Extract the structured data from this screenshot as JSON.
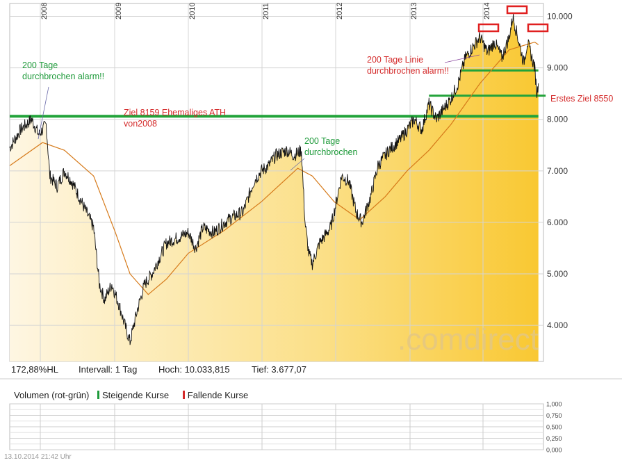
{
  "chart_data": {
    "type": "line",
    "x_year_labels": [
      "2008",
      "2009",
      "2010",
      "2011",
      "2012",
      "2013",
      "2014"
    ],
    "y_ticks": [
      4000,
      5000,
      6000,
      7000,
      8000,
      9000,
      10000
    ],
    "y_tick_labels": [
      "4.000",
      "5.000",
      "6.000",
      "7.000",
      "8.000",
      "9.000",
      "10.000"
    ],
    "ylim": [
      3300,
      10250
    ],
    "series": [
      {
        "role": "price",
        "points": [
          [
            2007.55,
            7450
          ],
          [
            2007.7,
            7800
          ],
          [
            2007.85,
            8000
          ],
          [
            2007.95,
            7700
          ],
          [
            2008.05,
            7900
          ],
          [
            2008.1,
            6900
          ],
          [
            2008.2,
            6700
          ],
          [
            2008.3,
            7000
          ],
          [
            2008.4,
            6800
          ],
          [
            2008.5,
            6500
          ],
          [
            2008.6,
            6200
          ],
          [
            2008.7,
            5900
          ],
          [
            2008.78,
            4800
          ],
          [
            2008.85,
            4500
          ],
          [
            2008.95,
            4800
          ],
          [
            2009.05,
            4400
          ],
          [
            2009.15,
            3900
          ],
          [
            2009.2,
            3680
          ],
          [
            2009.3,
            4300
          ],
          [
            2009.4,
            4800
          ],
          [
            2009.5,
            5000
          ],
          [
            2009.6,
            5300
          ],
          [
            2009.7,
            5600
          ],
          [
            2009.85,
            5700
          ],
          [
            2010.0,
            5800
          ],
          [
            2010.1,
            5500
          ],
          [
            2010.2,
            5900
          ],
          [
            2010.35,
            5800
          ],
          [
            2010.5,
            6000
          ],
          [
            2010.6,
            6100
          ],
          [
            2010.75,
            6200
          ],
          [
            2010.9,
            6800
          ],
          [
            2011.0,
            7000
          ],
          [
            2011.1,
            7100
          ],
          [
            2011.2,
            7300
          ],
          [
            2011.35,
            7400
          ],
          [
            2011.45,
            7300
          ],
          [
            2011.55,
            7400
          ],
          [
            2011.6,
            6000
          ],
          [
            2011.65,
            5400
          ],
          [
            2011.7,
            5200
          ],
          [
            2011.8,
            5600
          ],
          [
            2011.95,
            5900
          ],
          [
            2012.0,
            6200
          ],
          [
            2012.1,
            6900
          ],
          [
            2012.2,
            6800
          ],
          [
            2012.3,
            6200
          ],
          [
            2012.38,
            6000
          ],
          [
            2012.5,
            6500
          ],
          [
            2012.6,
            7100
          ],
          [
            2012.75,
            7400
          ],
          [
            2012.9,
            7600
          ],
          [
            2013.0,
            7800
          ],
          [
            2013.1,
            8000
          ],
          [
            2013.2,
            7800
          ],
          [
            2013.3,
            8300
          ],
          [
            2013.4,
            8000
          ],
          [
            2013.5,
            8200
          ],
          [
            2013.6,
            8400
          ],
          [
            2013.7,
            8700
          ],
          [
            2013.8,
            9200
          ],
          [
            2013.9,
            9400
          ],
          [
            2014.0,
            9600
          ],
          [
            2014.1,
            9300
          ],
          [
            2014.2,
            9500
          ],
          [
            2014.3,
            9200
          ],
          [
            2014.4,
            9600
          ],
          [
            2014.45,
            10000
          ],
          [
            2014.5,
            9700
          ],
          [
            2014.6,
            9100
          ],
          [
            2014.65,
            9500
          ],
          [
            2014.75,
            9000
          ],
          [
            2014.78,
            8500
          ],
          [
            2014.8,
            8700
          ]
        ]
      },
      {
        "role": "200-day line",
        "points": [
          [
            2007.55,
            7100
          ],
          [
            2008.0,
            7550
          ],
          [
            2008.3,
            7400
          ],
          [
            2008.7,
            6900
          ],
          [
            2009.0,
            5800
          ],
          [
            2009.2,
            5000
          ],
          [
            2009.45,
            4600
          ],
          [
            2009.7,
            4900
          ],
          [
            2010.0,
            5400
          ],
          [
            2010.5,
            5850
          ],
          [
            2011.0,
            6400
          ],
          [
            2011.5,
            7050
          ],
          [
            2011.7,
            6900
          ],
          [
            2012.0,
            6400
          ],
          [
            2012.35,
            6050
          ],
          [
            2012.7,
            6500
          ],
          [
            2013.0,
            7000
          ],
          [
            2013.3,
            7400
          ],
          [
            2013.6,
            7900
          ],
          [
            2014.0,
            8700
          ],
          [
            2014.4,
            9350
          ],
          [
            2014.75,
            9500
          ],
          [
            2014.8,
            9450
          ]
        ]
      }
    ],
    "reference_lines": [
      {
        "value": 8060,
        "color": "#22a33a",
        "x_from": 2007.55,
        "x_to": 2014.8
      },
      {
        "value": 8460,
        "color": "#22a33a",
        "x_from": 2013.3,
        "x_to": 2014.9
      },
      {
        "value": 8950,
        "color": "#22a33a",
        "x_from": 2013.75,
        "x_to": 2014.8
      }
    ],
    "annotations": [
      {
        "text": "200 Tage\ndurchbrochen alarm!!",
        "color": "#1e9a3a"
      },
      {
        "text": "Ziel 8159 Ehemaliges ATH\nvon2008",
        "color": "#d42a2a"
      },
      {
        "text": "200 Tage\ndurchbrochen",
        "color": "#1e9a3a"
      },
      {
        "text": "200 Tage Linie\ndurchbrochen alarm!!",
        "color": "#d42a2a"
      },
      {
        "text": "Erstes Ziel 8550",
        "color": "#d42a2a"
      }
    ],
    "watermark": ".comdirect",
    "grid": true
  },
  "stats": {
    "hl": "172,88%HL",
    "interval": "Intervall: 1 Tag",
    "high": "Hoch: 10.033,815",
    "low": "Tief:  3.677,07"
  },
  "volume": {
    "title": "Volumen (rot-grün)",
    "rising_label": "Steigende Kurse",
    "falling_label": "Fallende Kurse",
    "rising_color": "#1e9a3a",
    "falling_color": "#d42a2a",
    "y_tick_labels": [
      "1,000",
      "0,750",
      "0,500",
      "0,250",
      "0,000"
    ]
  },
  "footer": "13.10.2014 21:42 Uhr",
  "colors": {
    "area_light": "#fef3d8",
    "area_dark": "#f9c832",
    "price_line": "#111111",
    "ma_line": "#d67a1a",
    "grid": "#d4d4d4",
    "highlight_box": "#e02020"
  }
}
